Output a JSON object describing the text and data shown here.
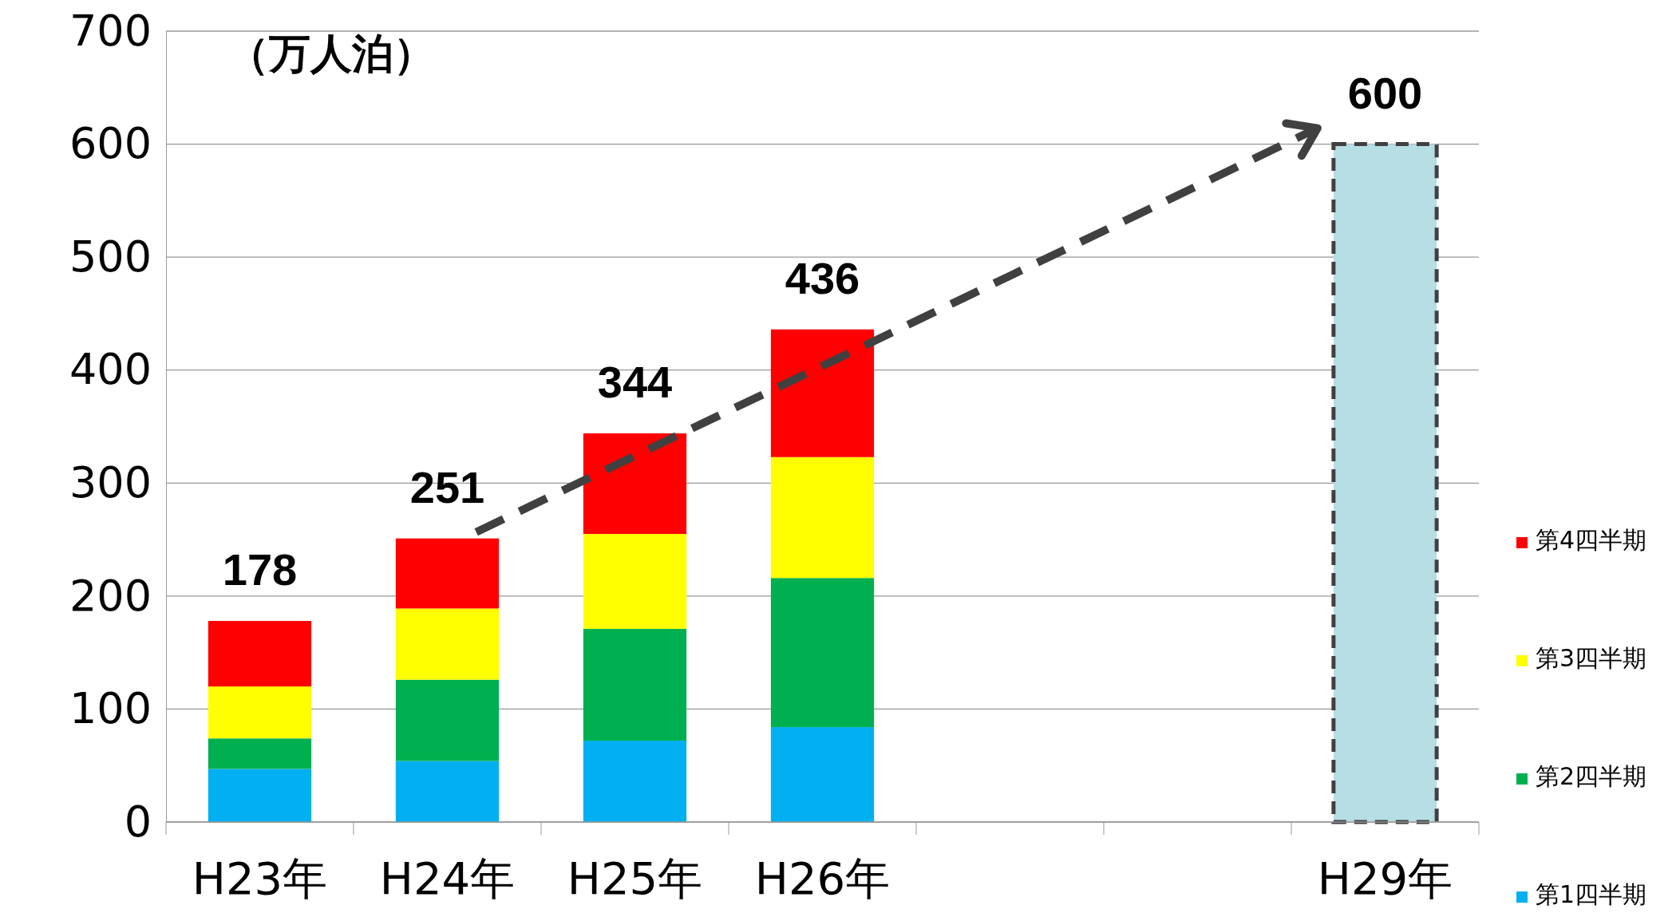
{
  "chart_data": {
    "type": "bar",
    "stacked": true,
    "ylabel": "（万人泊）",
    "categories": [
      "H23年",
      "H24年",
      "H25年",
      "H26年",
      null,
      null,
      "H29年"
    ],
    "series": [
      {
        "name": "第1四半期",
        "color": "#00b0f0",
        "values": [
          47,
          54,
          72,
          84,
          null,
          null,
          null
        ]
      },
      {
        "name": "第2四半期",
        "color": "#00b050",
        "values": [
          27,
          72,
          99,
          132,
          null,
          null,
          null
        ]
      },
      {
        "name": "第3四半期",
        "color": "#ffff00",
        "values": [
          46,
          63,
          84,
          107,
          null,
          null,
          null
        ]
      },
      {
        "name": "第4四半期",
        "color": "#ff0000",
        "values": [
          58,
          62,
          89,
          113,
          null,
          null,
          null
        ]
      },
      {
        "color": "#b7dde5",
        "line_style": "dashed",
        "values": [
          null,
          null,
          null,
          null,
          null,
          null,
          600
        ]
      }
    ],
    "totals": [
      "178",
      "251",
      "344",
      "436",
      null,
      null,
      "600"
    ],
    "ylim": [
      0,
      700
    ],
    "yticks": [
      0,
      100,
      200,
      300,
      400,
      500,
      600,
      700
    ],
    "grid": "y",
    "legend": "right"
  }
}
